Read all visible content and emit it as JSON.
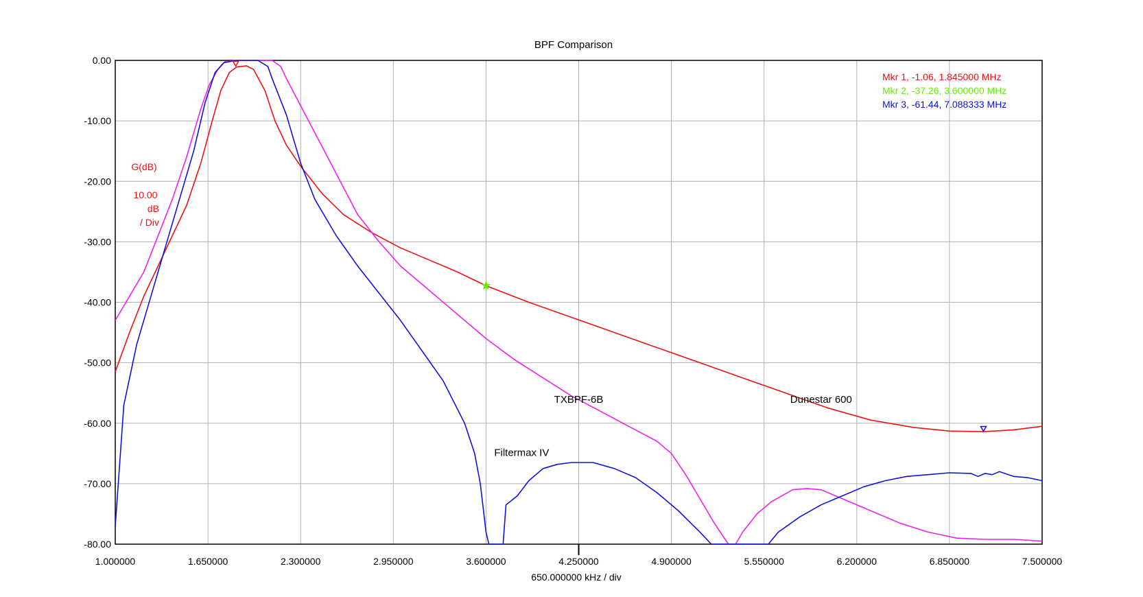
{
  "chart_data": {
    "type": "line",
    "title": "BPF Comparison",
    "xlabel": "650.000000 kHz / div",
    "ylabel_lines": [
      "G(dB)",
      "10.00",
      "dB",
      "/ Div"
    ],
    "xlim": [
      1.0,
      7.5
    ],
    "ylim": [
      -80,
      0
    ],
    "x_ticks": [
      1.0,
      1.65,
      2.3,
      2.95,
      3.6,
      4.25,
      4.9,
      5.55,
      6.2,
      6.85,
      7.5
    ],
    "x_tick_labels": [
      "1.000000",
      "1.650000",
      "2.300000",
      "2.950000",
      "3.600000",
      "4.250000",
      "4.900000",
      "5.550000",
      "6.200000",
      "6.850000",
      "7.500000"
    ],
    "y_ticks": [
      0,
      -10,
      -20,
      -30,
      -40,
      -50,
      -60,
      -70,
      -80
    ],
    "y_tick_labels": [
      "0.00",
      "-10.00",
      "-20.00",
      "-30.00",
      "-40.00",
      "-50.00",
      "-60.00",
      "-70.00",
      "-80.00"
    ],
    "grid": true,
    "series": [
      {
        "name": "Dunestar 600",
        "color": "#ee1111",
        "label_at": [
          5.95,
          -56.6
        ],
        "points": [
          [
            1.0,
            -51.5
          ],
          [
            1.1,
            -45
          ],
          [
            1.2,
            -39
          ],
          [
            1.3,
            -34
          ],
          [
            1.4,
            -29
          ],
          [
            1.5,
            -24
          ],
          [
            1.6,
            -17
          ],
          [
            1.68,
            -10
          ],
          [
            1.74,
            -5
          ],
          [
            1.8,
            -2
          ],
          [
            1.85,
            -1.1
          ],
          [
            1.92,
            -0.9
          ],
          [
            1.97,
            -1.5
          ],
          [
            2.05,
            -5
          ],
          [
            2.12,
            -10
          ],
          [
            2.2,
            -14
          ],
          [
            2.3,
            -17.5
          ],
          [
            2.45,
            -22
          ],
          [
            2.6,
            -25.5
          ],
          [
            2.8,
            -28.5
          ],
          [
            3.0,
            -31
          ],
          [
            3.2,
            -33
          ],
          [
            3.4,
            -35
          ],
          [
            3.6,
            -37.26
          ],
          [
            3.9,
            -40
          ],
          [
            4.2,
            -42.5
          ],
          [
            4.5,
            -45
          ],
          [
            4.8,
            -47.5
          ],
          [
            5.1,
            -50
          ],
          [
            5.4,
            -52.5
          ],
          [
            5.7,
            -55
          ],
          [
            6.0,
            -57.5
          ],
          [
            6.3,
            -59.5
          ],
          [
            6.6,
            -60.7
          ],
          [
            6.85,
            -61.3
          ],
          [
            7.09,
            -61.4
          ],
          [
            7.3,
            -61.1
          ],
          [
            7.5,
            -60.5
          ]
        ]
      },
      {
        "name": "TXBPF-6B",
        "color": "#ee22ee",
        "label_at": [
          4.25,
          -56.6
        ],
        "points": [
          [
            1.0,
            -43
          ],
          [
            1.1,
            -39
          ],
          [
            1.2,
            -35
          ],
          [
            1.3,
            -29
          ],
          [
            1.4,
            -23
          ],
          [
            1.5,
            -16
          ],
          [
            1.6,
            -8
          ],
          [
            1.66,
            -4
          ],
          [
            1.72,
            -1.5
          ],
          [
            1.77,
            -0.2
          ],
          [
            1.85,
            0
          ],
          [
            2.0,
            0
          ],
          [
            2.1,
            0
          ],
          [
            2.16,
            -1
          ],
          [
            2.2,
            -3
          ],
          [
            2.3,
            -7.5
          ],
          [
            2.4,
            -12
          ],
          [
            2.5,
            -16.5
          ],
          [
            2.6,
            -21
          ],
          [
            2.7,
            -25.5
          ],
          [
            2.85,
            -30
          ],
          [
            3.0,
            -34
          ],
          [
            3.2,
            -38
          ],
          [
            3.4,
            -42
          ],
          [
            3.6,
            -46
          ],
          [
            3.8,
            -49.5
          ],
          [
            4.0,
            -52.5
          ],
          [
            4.2,
            -55.5
          ],
          [
            4.4,
            -58
          ],
          [
            4.6,
            -60.5
          ],
          [
            4.8,
            -63
          ],
          [
            4.9,
            -65
          ],
          [
            5.0,
            -68.5
          ],
          [
            5.1,
            -72.5
          ],
          [
            5.2,
            -76.5
          ],
          [
            5.3,
            -80
          ],
          [
            5.35,
            -80
          ],
          [
            5.4,
            -78
          ],
          [
            5.5,
            -75
          ],
          [
            5.6,
            -73
          ],
          [
            5.75,
            -71
          ],
          [
            5.85,
            -70.8
          ],
          [
            5.95,
            -71
          ],
          [
            6.1,
            -72.5
          ],
          [
            6.3,
            -74.5
          ],
          [
            6.5,
            -76.5
          ],
          [
            6.7,
            -78
          ],
          [
            6.9,
            -79
          ],
          [
            7.1,
            -79.2
          ],
          [
            7.3,
            -79.2
          ],
          [
            7.5,
            -79.5
          ]
        ]
      },
      {
        "name": "Filtermax IV",
        "color": "#1111dd",
        "label_at": [
          3.85,
          -65.4
        ],
        "points": [
          [
            1.0,
            -77
          ],
          [
            1.06,
            -57
          ],
          [
            1.15,
            -47
          ],
          [
            1.25,
            -39
          ],
          [
            1.35,
            -31
          ],
          [
            1.45,
            -23
          ],
          [
            1.55,
            -15
          ],
          [
            1.63,
            -7
          ],
          [
            1.7,
            -2
          ],
          [
            1.76,
            -0.4
          ],
          [
            1.85,
            0
          ],
          [
            2.0,
            0
          ],
          [
            2.07,
            -1
          ],
          [
            2.1,
            -3
          ],
          [
            2.2,
            -9
          ],
          [
            2.3,
            -17
          ],
          [
            2.4,
            -23
          ],
          [
            2.55,
            -29
          ],
          [
            2.7,
            -34
          ],
          [
            2.85,
            -38.5
          ],
          [
            3.0,
            -43
          ],
          [
            3.15,
            -48
          ],
          [
            3.3,
            -53
          ],
          [
            3.45,
            -60
          ],
          [
            3.52,
            -65
          ],
          [
            3.56,
            -70
          ],
          [
            3.6,
            -78
          ],
          [
            3.62,
            -80
          ],
          [
            3.72,
            -80
          ],
          [
            3.74,
            -73.5
          ],
          [
            3.82,
            -72
          ],
          [
            3.9,
            -69.5
          ],
          [
            4.0,
            -67.5
          ],
          [
            4.1,
            -66.8
          ],
          [
            4.2,
            -66.5
          ],
          [
            4.35,
            -66.5
          ],
          [
            4.5,
            -67.5
          ],
          [
            4.65,
            -69
          ],
          [
            4.8,
            -71.5
          ],
          [
            4.95,
            -74.5
          ],
          [
            5.1,
            -78
          ],
          [
            5.18,
            -80
          ],
          [
            5.58,
            -80
          ],
          [
            5.65,
            -78
          ],
          [
            5.8,
            -75.5
          ],
          [
            5.95,
            -73.5
          ],
          [
            6.1,
            -72
          ],
          [
            6.25,
            -70.5
          ],
          [
            6.4,
            -69.5
          ],
          [
            6.55,
            -68.8
          ],
          [
            6.7,
            -68.5
          ],
          [
            6.85,
            -68.2
          ],
          [
            7.0,
            -68.3
          ],
          [
            7.05,
            -68.8
          ],
          [
            7.1,
            -68.3
          ],
          [
            7.15,
            -68.5
          ],
          [
            7.2,
            -68
          ],
          [
            7.3,
            -68.8
          ],
          [
            7.4,
            -69
          ],
          [
            7.5,
            -69.5
          ]
        ]
      }
    ],
    "markers": [
      {
        "id": 1,
        "x": 1.845,
        "y": -1.06,
        "color": "#ee1111",
        "shape": "triangle-down",
        "readout": "Mkr 1, -1.06, 1.845000 MHz"
      },
      {
        "id": 2,
        "x": 3.6,
        "y": -37.26,
        "color": "#66ee00",
        "shape": "star",
        "readout": "Mkr 2, -37.26, 3.600000 MHz"
      },
      {
        "id": 3,
        "x": 7.088333,
        "y": -61.44,
        "color": "#1111dd",
        "shape": "triangle-down",
        "readout": "Mkr 3, -61.44, 7.088333 MHz"
      }
    ],
    "center_marker_x": 4.25
  }
}
